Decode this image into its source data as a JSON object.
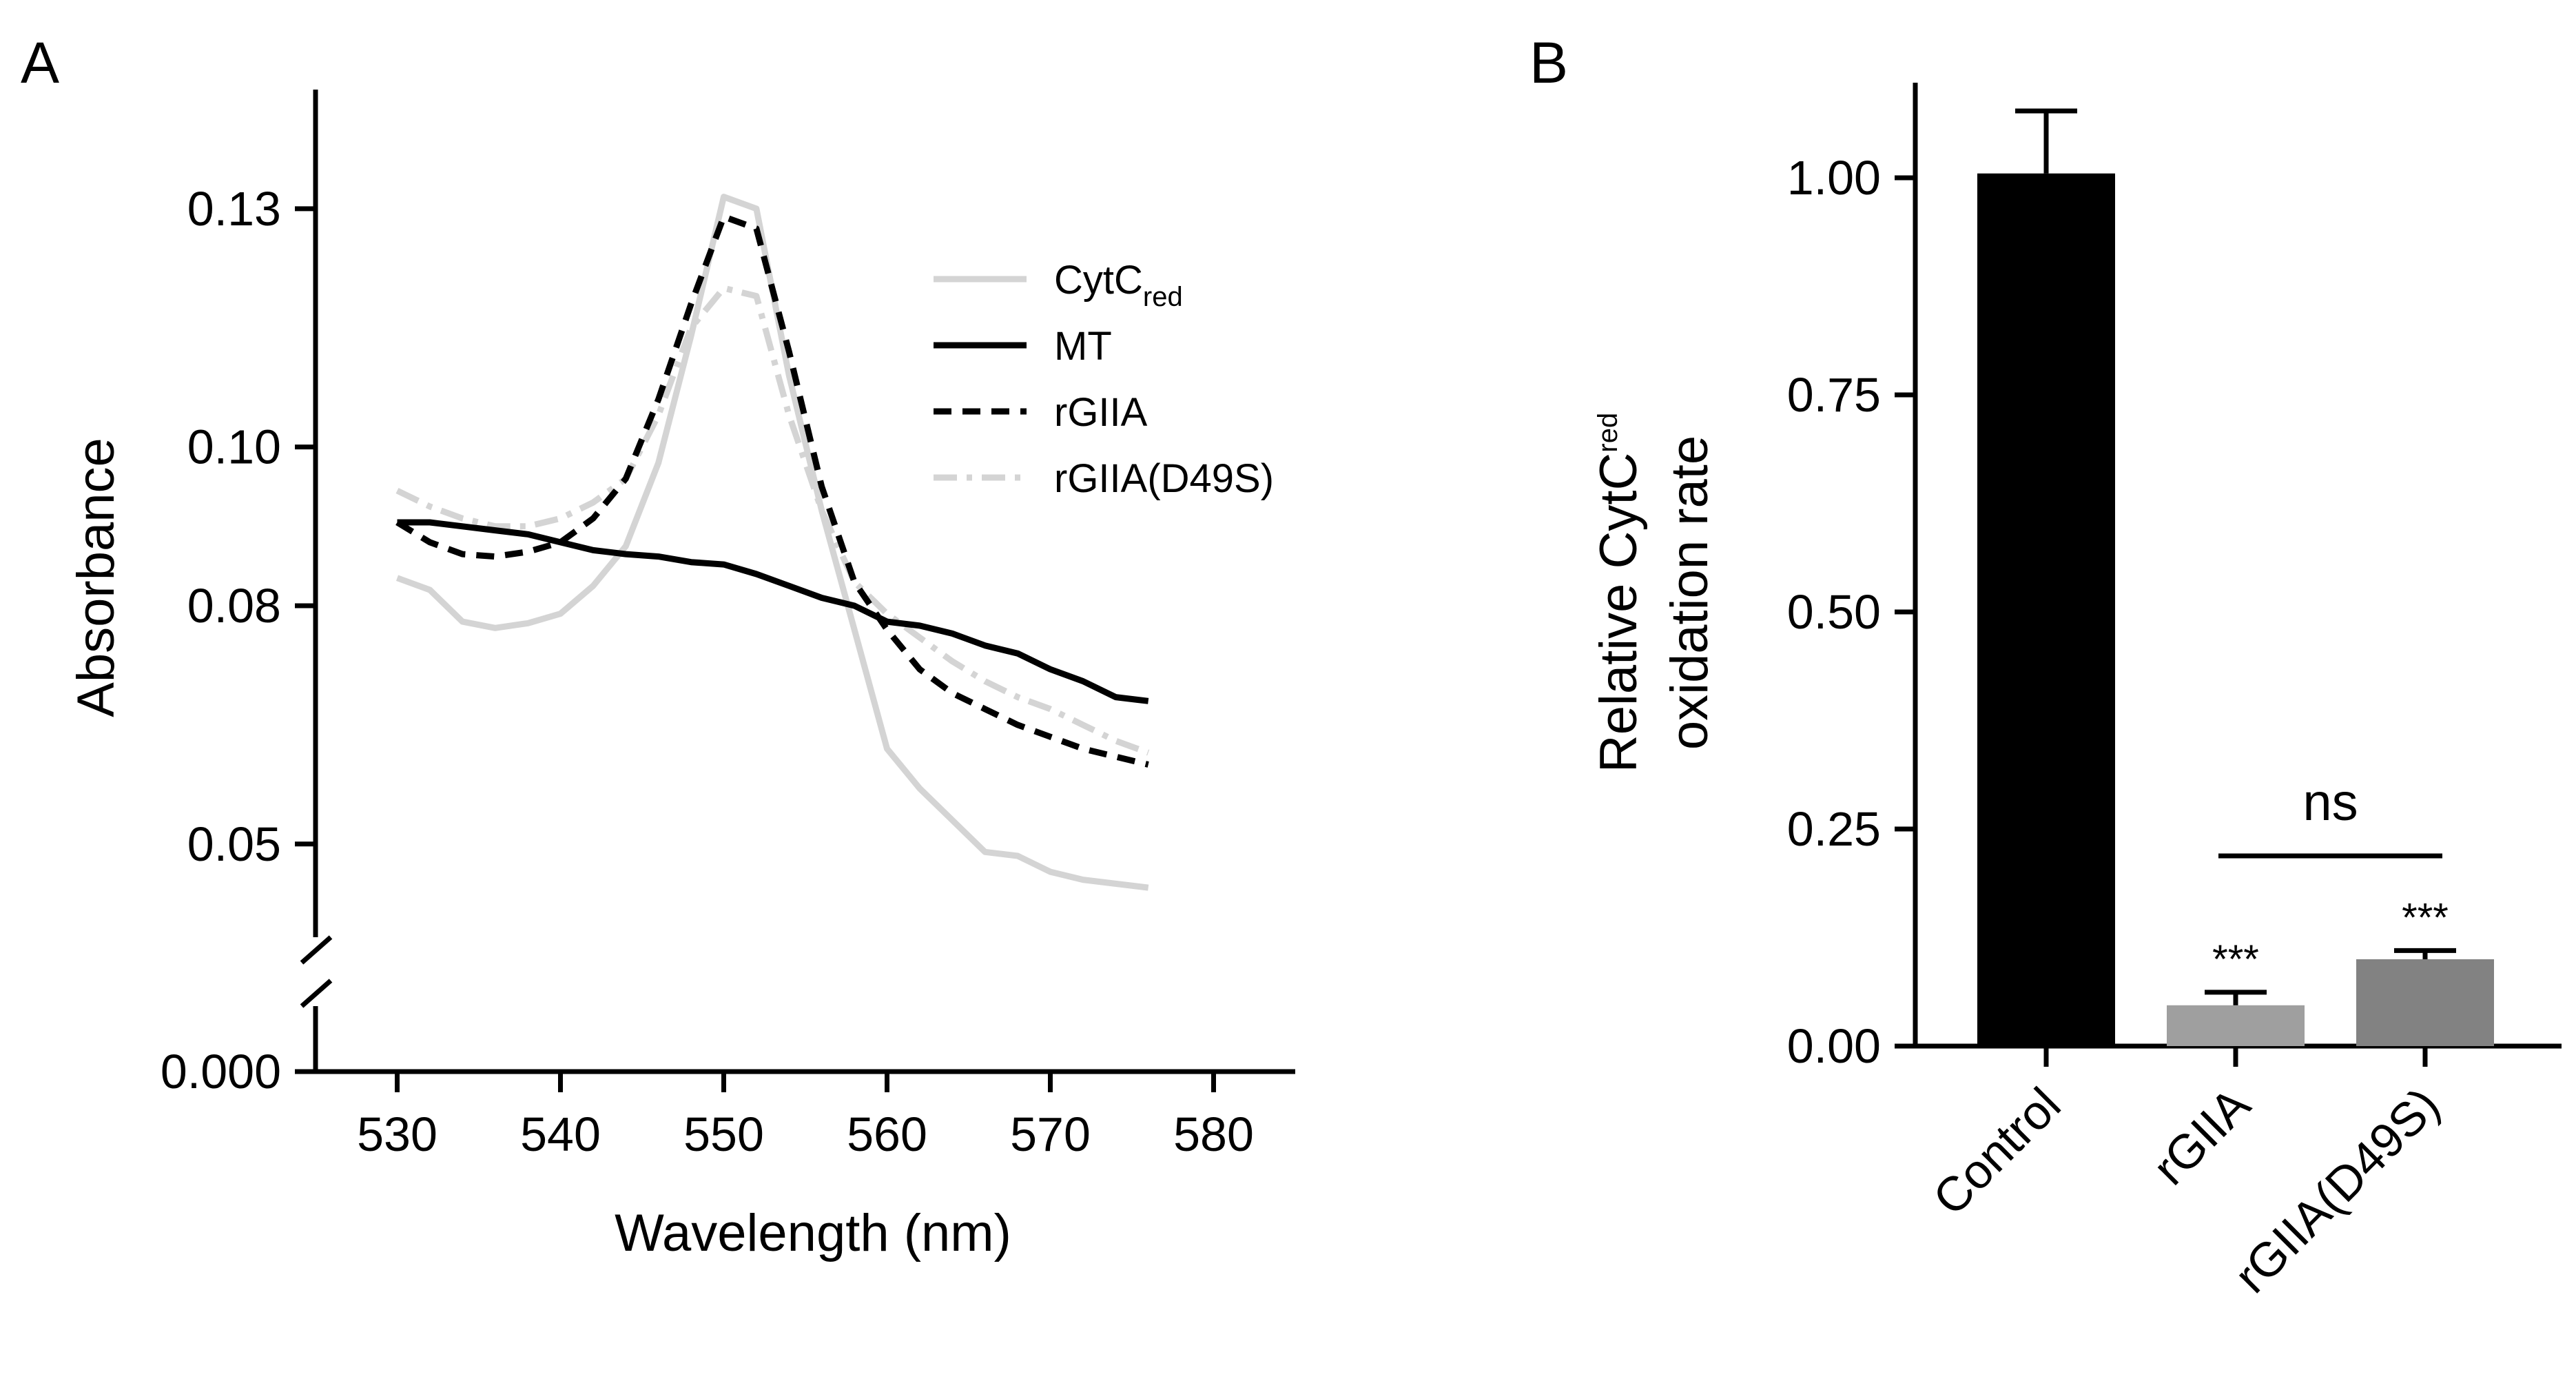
{
  "chart_data": [
    {
      "panel_label": "A",
      "type": "line",
      "xlabel": "Wavelength (nm)",
      "ylabel": "Absorbance",
      "x_ticks": [
        "530",
        "540",
        "550",
        "560",
        "570",
        "580"
      ],
      "y_ticks": [
        "0.000",
        "0.05",
        "0.08",
        "0.10",
        "0.13"
      ],
      "xlim": [
        525,
        585
      ],
      "y_axis_break": true,
      "legend": {
        "placement": "top-right"
      },
      "series": [
        {
          "name": "CytC",
          "name_subscript": "red",
          "color": "#d4d4d4",
          "dash": "solid",
          "x": [
            530,
            532,
            534,
            536,
            538,
            540,
            542,
            544,
            546,
            548,
            550,
            552,
            554,
            556,
            558,
            560,
            562,
            564,
            566,
            568,
            570,
            572,
            574,
            576
          ],
          "y": [
            0.0835,
            0.082,
            0.078,
            0.0772,
            0.0778,
            0.079,
            0.0825,
            0.0875,
            0.098,
            0.114,
            0.1315,
            0.13,
            0.109,
            0.092,
            0.077,
            0.062,
            0.057,
            0.053,
            0.049,
            0.0485,
            0.0465,
            0.0455,
            0.045,
            0.0445
          ]
        },
        {
          "name": "MT",
          "color": "#000000",
          "dash": "solid",
          "x": [
            530,
            532,
            534,
            536,
            538,
            540,
            542,
            544,
            546,
            548,
            550,
            552,
            554,
            556,
            558,
            560,
            562,
            564,
            566,
            568,
            570,
            572,
            574,
            576
          ],
          "y": [
            0.0905,
            0.0905,
            0.09,
            0.0895,
            0.089,
            0.088,
            0.087,
            0.0865,
            0.0862,
            0.0855,
            0.0852,
            0.084,
            0.0825,
            0.081,
            0.08,
            0.078,
            0.0775,
            0.0765,
            0.075,
            0.074,
            0.072,
            0.0705,
            0.0685,
            0.068
          ]
        },
        {
          "name": "rGIIA",
          "color": "#000000",
          "dash": "dashed",
          "x": [
            530,
            532,
            534,
            536,
            538,
            540,
            542,
            544,
            546,
            548,
            550,
            552,
            554,
            556,
            558,
            560,
            562,
            564,
            566,
            568,
            570,
            572,
            574,
            576
          ],
          "y": [
            0.0905,
            0.088,
            0.0865,
            0.0862,
            0.0868,
            0.088,
            0.091,
            0.096,
            0.106,
            0.118,
            0.129,
            0.1275,
            0.112,
            0.095,
            0.083,
            0.077,
            0.072,
            0.069,
            0.067,
            0.065,
            0.0635,
            0.062,
            0.061,
            0.06
          ]
        },
        {
          "name": "rGIIA(D49S)",
          "color": "#d4d4d4",
          "dash": "dashdot",
          "x": [
            530,
            532,
            534,
            536,
            538,
            540,
            542,
            544,
            546,
            548,
            550,
            552,
            554,
            556,
            558,
            560,
            562,
            564,
            566,
            568,
            570,
            572,
            574,
            576
          ],
          "y": [
            0.0945,
            0.0925,
            0.091,
            0.09,
            0.09,
            0.091,
            0.093,
            0.096,
            0.104,
            0.115,
            0.12,
            0.119,
            0.104,
            0.092,
            0.083,
            0.079,
            0.076,
            0.073,
            0.0705,
            0.0685,
            0.067,
            0.065,
            0.063,
            0.0615
          ]
        }
      ]
    },
    {
      "panel_label": "B",
      "type": "bar",
      "ylabel": "Relative CytC",
      "ylabel_subscript": "red",
      "ylabel_line2": "oxidation rate",
      "categories": [
        "Control",
        "rGIIA",
        "rGIIA(D49S)"
      ],
      "values": [
        1.005,
        0.047,
        0.1
      ],
      "errors": [
        0.072,
        0.015,
        0.01
      ],
      "colors": [
        "#000000",
        "#9f9f9f",
        "#828282"
      ],
      "significance": [
        "",
        "***",
        "***"
      ],
      "comparison": {
        "between": [
          "rGIIA",
          "rGIIA(D49S)"
        ],
        "label": "ns"
      },
      "y_ticks": [
        "0.00",
        "0.25",
        "0.50",
        "0.75",
        "1.00"
      ],
      "ylim": [
        0,
        1.1
      ]
    }
  ]
}
